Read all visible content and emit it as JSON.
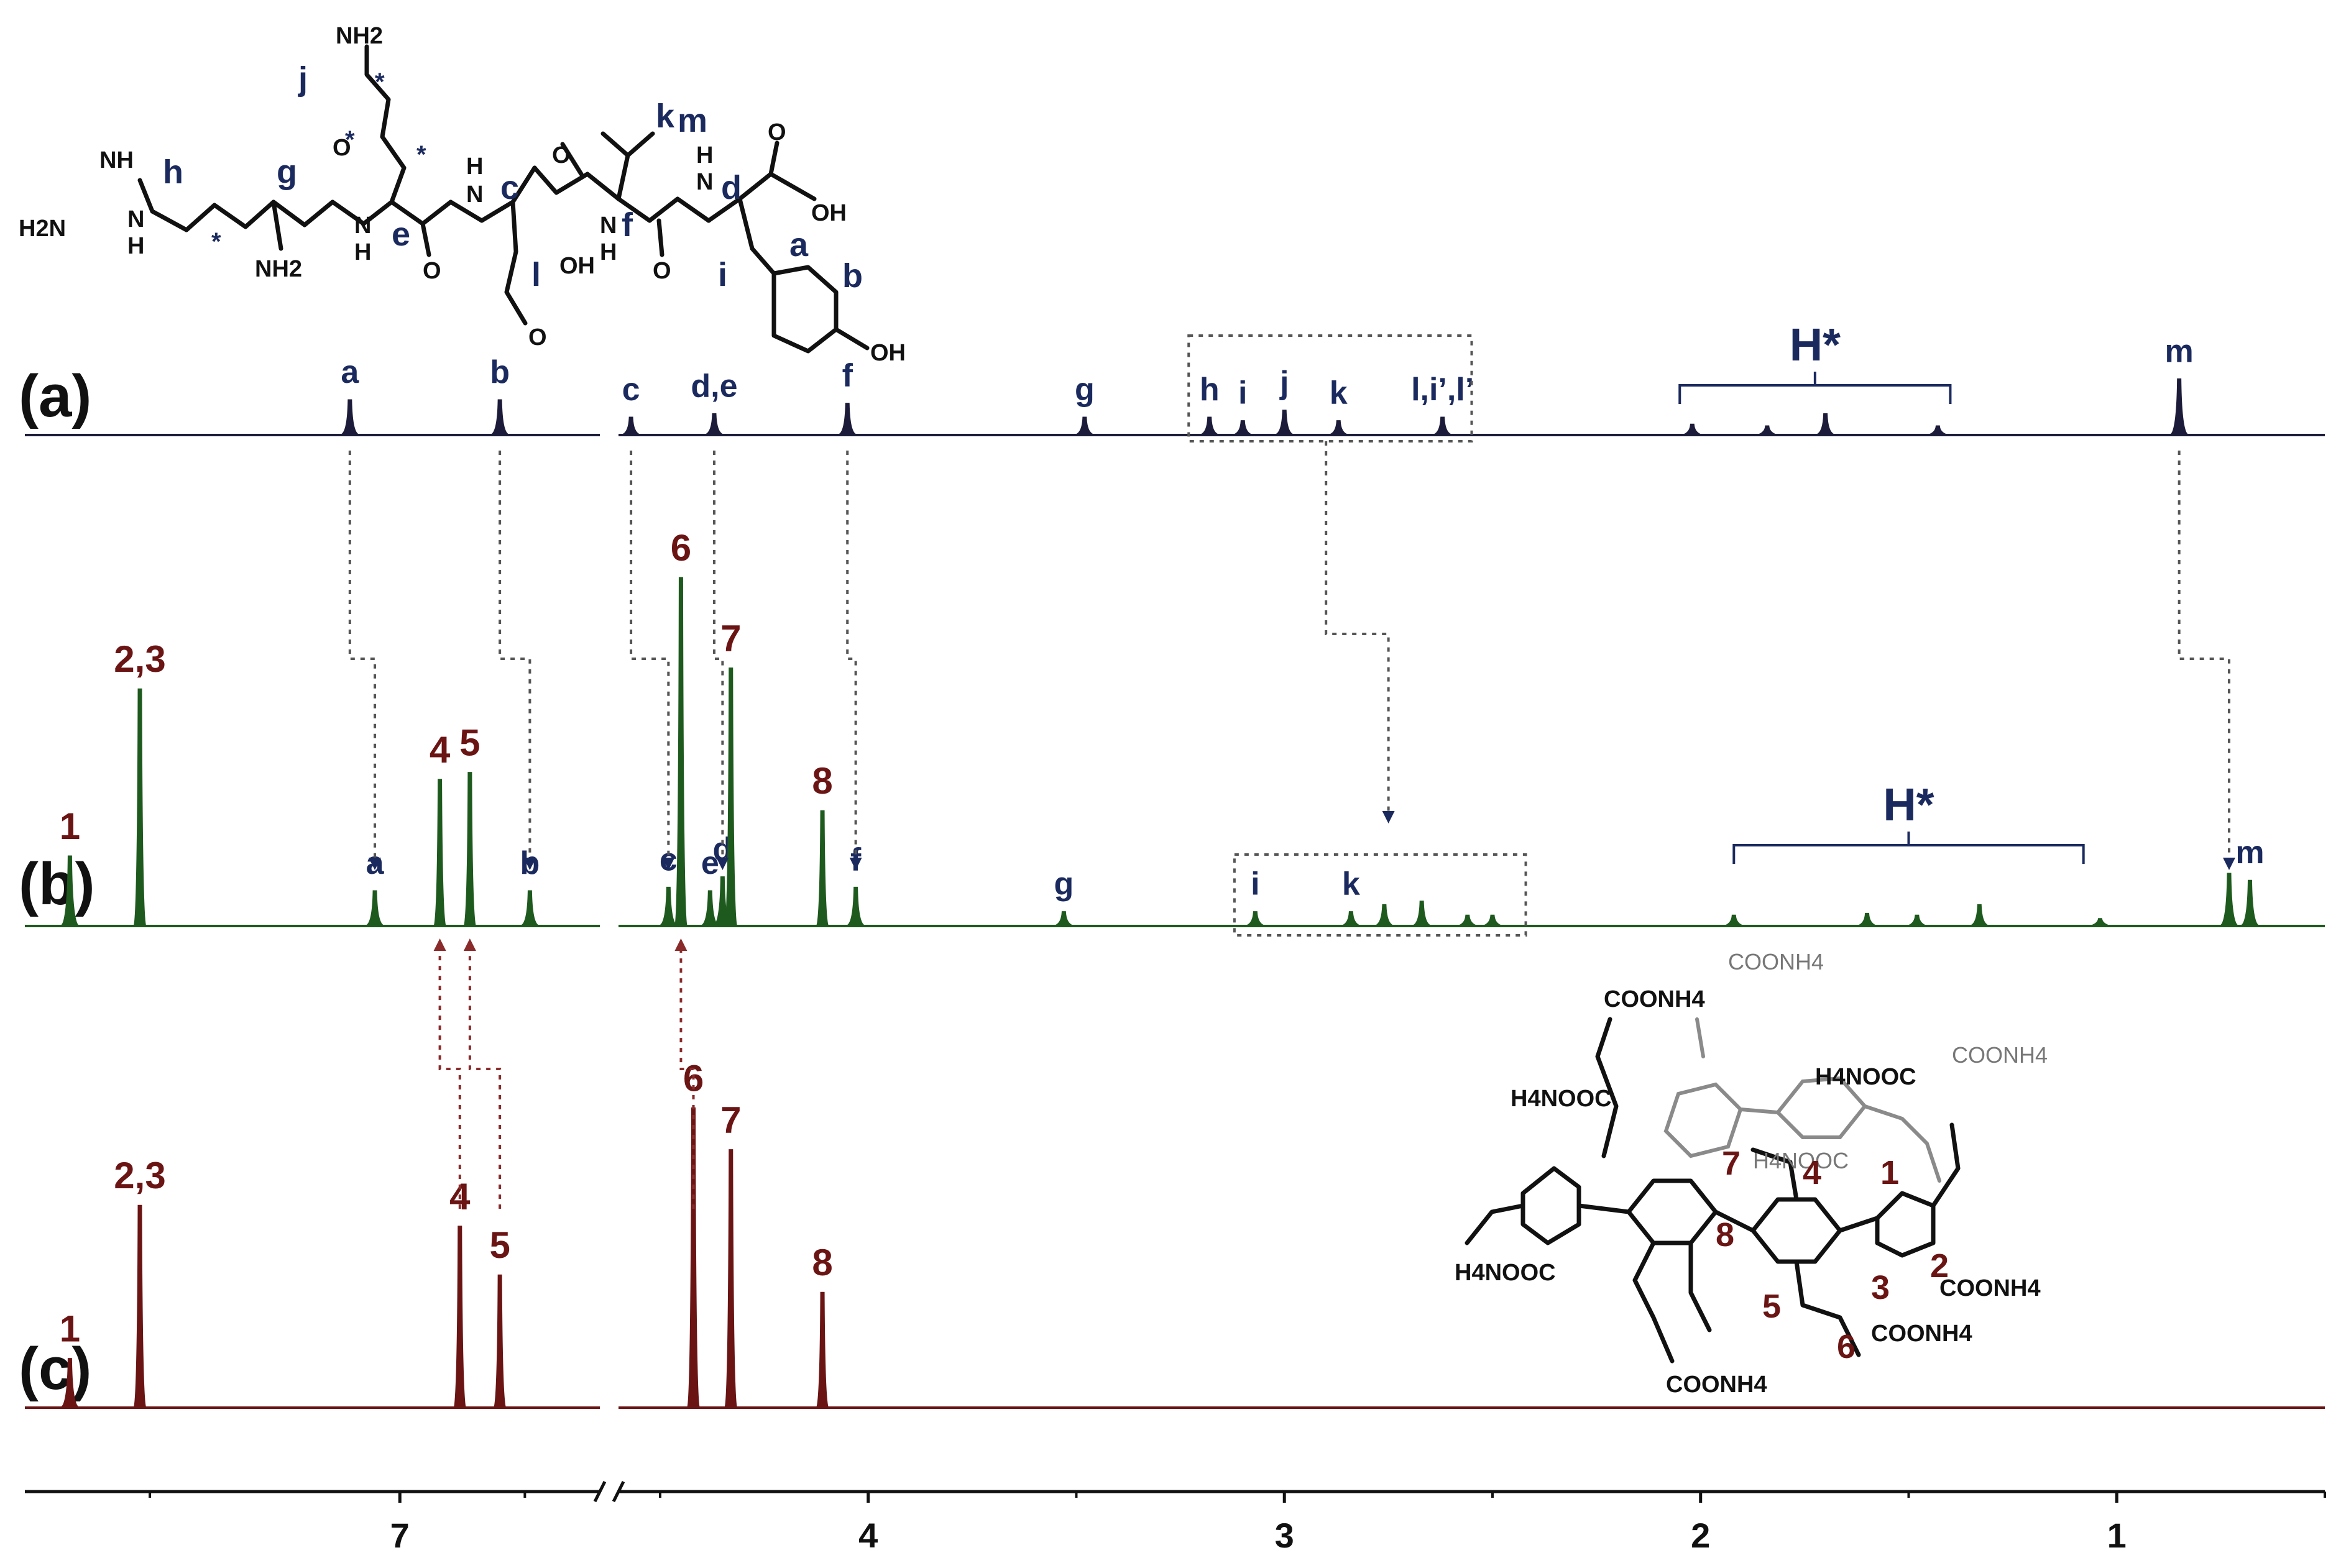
{
  "chart_data": {
    "type": "line",
    "x_axis": {
      "ticks": [
        "7",
        "4",
        "3",
        "2",
        "1"
      ],
      "tick_values": [
        7,
        4,
        3,
        2,
        1
      ],
      "reversed": true,
      "broken": true,
      "segments": [
        [
          7.75,
          6.6
        ],
        [
          4.6,
          0.5
        ]
      ]
    },
    "panels": [
      {
        "label": "(a)",
        "color": "#1c1c3a",
        "peaks": [
          {
            "x": 7.1,
            "h": 0.1,
            "label": "a"
          },
          {
            "x": 6.8,
            "h": 0.1,
            "label": "b"
          },
          {
            "x": 4.57,
            "h": 0.05,
            "label": "c"
          },
          {
            "x": 4.37,
            "h": 0.06,
            "label": "d,e"
          },
          {
            "x": 4.05,
            "h": 0.09,
            "label": "f"
          },
          {
            "x": 3.48,
            "h": 0.05,
            "label": "g"
          },
          {
            "x": 3.18,
            "h": 0.05,
            "label": "h"
          },
          {
            "x": 3.1,
            "h": 0.04,
            "label": "i"
          },
          {
            "x": 3.0,
            "h": 0.07,
            "label": "j"
          },
          {
            "x": 2.87,
            "h": 0.04,
            "label": "k"
          },
          {
            "x": 2.62,
            "h": 0.05,
            "label": "l,i’,l’"
          },
          {
            "x": 2.02,
            "h": 0.03,
            "label": ""
          },
          {
            "x": 1.84,
            "h": 0.025,
            "label": ""
          },
          {
            "x": 1.7,
            "h": 0.06,
            "label": ""
          },
          {
            "x": 1.43,
            "h": 0.025,
            "label": ""
          },
          {
            "x": 0.85,
            "h": 0.16,
            "label": "m"
          }
        ],
        "bracket": {
          "from": 2.05,
          "to": 1.4,
          "label": "H*"
        }
      },
      {
        "label": "(b)",
        "color": "#1e5a1e",
        "peaks": [
          {
            "x": 7.66,
            "h": 0.2,
            "label": "1",
            "host": true
          },
          {
            "x": 7.52,
            "h": 0.68,
            "label": "2,3",
            "host": true
          },
          {
            "x": 7.05,
            "h": 0.1,
            "label": "a"
          },
          {
            "x": 6.92,
            "h": 0.42,
            "label": "4",
            "host": true
          },
          {
            "x": 6.86,
            "h": 0.44,
            "label": "5",
            "host": true
          },
          {
            "x": 6.74,
            "h": 0.1,
            "label": "b"
          },
          {
            "x": 4.48,
            "h": 0.11,
            "label": "c"
          },
          {
            "x": 4.45,
            "h": 1.0,
            "label": "6",
            "host": true
          },
          {
            "x": 4.38,
            "h": 0.1,
            "label": "e"
          },
          {
            "x": 4.35,
            "h": 0.14,
            "label": "d"
          },
          {
            "x": 4.33,
            "h": 0.74,
            "label": "7",
            "host": true
          },
          {
            "x": 4.11,
            "h": 0.33,
            "label": "8",
            "host": true
          },
          {
            "x": 4.03,
            "h": 0.11,
            "label": "f"
          },
          {
            "x": 3.53,
            "h": 0.04,
            "label": "g"
          },
          {
            "x": 3.07,
            "h": 0.04,
            "label": "i"
          },
          {
            "x": 2.84,
            "h": 0.04,
            "label": "k"
          },
          {
            "x": 2.76,
            "h": 0.06,
            "label": ""
          },
          {
            "x": 2.67,
            "h": 0.07,
            "label": ""
          },
          {
            "x": 2.56,
            "h": 0.03,
            "label": ""
          },
          {
            "x": 2.5,
            "h": 0.03,
            "label": ""
          },
          {
            "x": 1.92,
            "h": 0.03,
            "label": ""
          },
          {
            "x": 1.6,
            "h": 0.035,
            "label": ""
          },
          {
            "x": 1.48,
            "h": 0.03,
            "label": ""
          },
          {
            "x": 1.33,
            "h": 0.06,
            "label": ""
          },
          {
            "x": 1.04,
            "h": 0.02,
            "label": ""
          },
          {
            "x": 0.73,
            "h": 0.15,
            "label": ""
          },
          {
            "x": 0.68,
            "h": 0.13,
            "label": "m"
          }
        ],
        "bracket": {
          "from": 1.92,
          "to": 1.08,
          "label": "H*"
        }
      },
      {
        "label": "(c)",
        "color": "#6b1414",
        "peaks": [
          {
            "x": 7.66,
            "h": 0.14,
            "label": "1"
          },
          {
            "x": 7.52,
            "h": 0.58,
            "label": "2,3"
          },
          {
            "x": 6.88,
            "h": 0.52,
            "label": "4"
          },
          {
            "x": 6.8,
            "h": 0.38,
            "label": "5"
          },
          {
            "x": 4.42,
            "h": 0.86,
            "label": "6"
          },
          {
            "x": 4.33,
            "h": 0.74,
            "label": "7"
          },
          {
            "x": 4.11,
            "h": 0.33,
            "label": "8"
          }
        ]
      }
    ]
  },
  "structures": {
    "peptide_atoms": {
      "nh2_top": "NH2",
      "nh_guan": "NH",
      "h2n_guan": "H2N",
      "n_guan": "N",
      "h_guan": "H",
      "nh2_arg": "NH2",
      "o_lys": "O",
      "n_e": "N",
      "h_e": "H",
      "o_e": "O",
      "n_c": "N",
      "h_c": "H",
      "o_c": "O",
      "oh_c": "OH",
      "o_c2": "O",
      "n_f": "N",
      "h_f": "H",
      "o_f": "O",
      "n_d": "N",
      "h_d": "H",
      "o_d": "O",
      "oh_d": "OH",
      "oh_phen": "OH"
    },
    "peptide_labels": [
      "j",
      "h",
      "g",
      "e",
      "c",
      "l",
      "k",
      "m",
      "f",
      "d",
      "i",
      "a",
      "b",
      "*",
      "*",
      "*",
      "*"
    ],
    "host_labels": [
      "7",
      "4",
      "1",
      "8",
      "3",
      "2",
      "5",
      "6"
    ],
    "host_groups": [
      "COONH4",
      "COONH4",
      "COONH4",
      "H4NOOC",
      "H4NOOC",
      "H4NOOC",
      "COONH4",
      "COONH4",
      "H4NOOC",
      "COONH4"
    ]
  }
}
